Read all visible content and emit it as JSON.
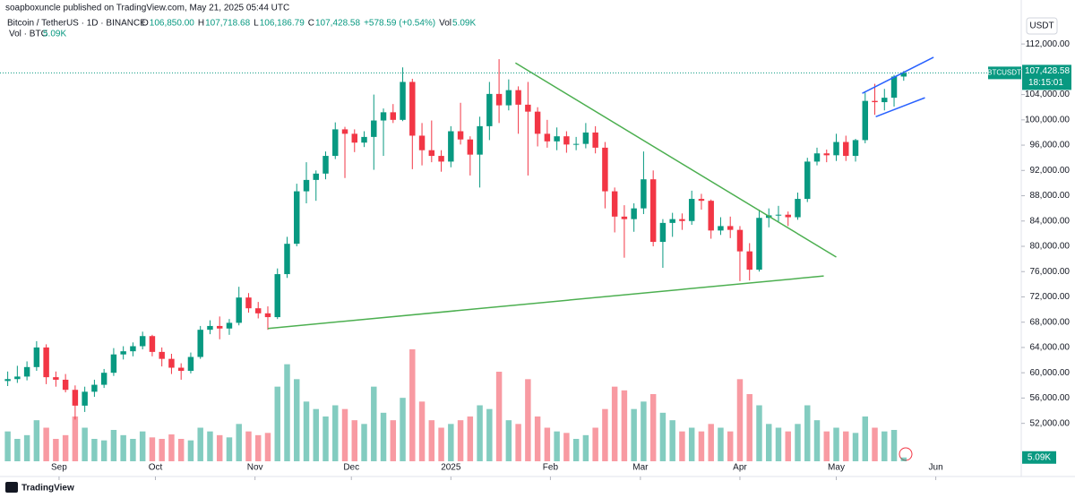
{
  "header": {
    "published": "soapboxuncle published on TradingView.com, May 21, 2025 05:44 UTC",
    "symbol": "Bitcoin / TetherUS · 1D · BINANCE",
    "ohlc": [
      {
        "key": "O",
        "text": "106,850.00"
      },
      {
        "key": "H",
        "text": "107,718.68"
      },
      {
        "key": "L",
        "text": "106,186.79"
      },
      {
        "key": "C",
        "text": "107,428.58"
      }
    ],
    "change": "+578.59 (+0.54%)",
    "vol_key": "Vol",
    "vol_text": "5.09K",
    "vol_legend": "Vol · BTC",
    "vol_legend_value": "5.09K",
    "currency": "USDT",
    "brand": "TradingView"
  },
  "chart_data": {
    "type": "candlestick",
    "symbol_tag": "BTCUSDT",
    "countdown": "18:15:01",
    "up_color": "#089981",
    "down_color": "#f23645",
    "grid": false,
    "xlim": [
      -0.8,
      105.2
    ],
    "ylim": [
      46000,
      114000
    ],
    "vlim": [
      0,
      180
    ],
    "xticks": [
      {
        "value": 5.33,
        "label": "Sep"
      },
      {
        "value": 15.33,
        "label": "Oct"
      },
      {
        "value": 25.67,
        "label": "Nov"
      },
      {
        "value": 35.67,
        "label": "Dec"
      },
      {
        "value": 46,
        "label": "2025"
      },
      {
        "value": 56.33,
        "label": "Feb"
      },
      {
        "value": 65.67,
        "label": "Mar"
      },
      {
        "value": 76,
        "label": "Apr"
      },
      {
        "value": 86,
        "label": "May"
      },
      {
        "value": 96.33,
        "label": "Jun"
      }
    ],
    "yticks": [
      {
        "value": 52000,
        "label": "52,000.00"
      },
      {
        "value": 56000,
        "label": "56,000.00"
      },
      {
        "value": 60000,
        "label": "60,000.00"
      },
      {
        "value": 64000,
        "label": "64,000.00"
      },
      {
        "value": 68000,
        "label": "68,000.00"
      },
      {
        "value": 72000,
        "label": "72,000.00"
      },
      {
        "value": 76000,
        "label": "76,000.00"
      },
      {
        "value": 80000,
        "label": "80,000.00"
      },
      {
        "value": 84000,
        "label": "84,000.00"
      },
      {
        "value": 88000,
        "label": "88,000.00"
      },
      {
        "value": 92000,
        "label": "92,000.00"
      },
      {
        "value": 96000,
        "label": "96,000.00"
      },
      {
        "value": 100000,
        "label": "100,000.00"
      },
      {
        "value": 104000,
        "label": "104,000.00"
      },
      {
        "value": 108000,
        "label": "108,000.00"
      },
      {
        "value": 112000,
        "label": "112,000.00"
      }
    ],
    "last_price": {
      "value": 107428.58,
      "label": "107,428.58"
    },
    "volume_tag": {
      "value": 5.09,
      "label": "5.09K"
    },
    "open": [
      58700,
      59000,
      59400,
      60900,
      64000,
      59300,
      58900,
      57300,
      54800,
      57000,
      58100,
      60000,
      62900,
      63400,
      64200,
      65800,
      63300,
      62200,
      60800,
      60300,
      62500,
      66800,
      67400,
      67000,
      67900,
      71900,
      70200,
      69400,
      68800,
      75600,
      80400,
      88700,
      90500,
      91500,
      94300,
      98500,
      97800,
      96400,
      97300,
      99900,
      101200,
      100000,
      106000,
      97500,
      95200,
      94300,
      93400,
      98200,
      96900,
      94500,
      99000,
      104100,
      102300,
      104700,
      102400,
      101300,
      97800,
      96600,
      97400,
      96100,
      96200,
      98000,
      95600,
      88700,
      84700,
      84300,
      86000,
      90600,
      80700,
      83700,
      84300,
      84000,
      87500,
      87200,
      82500,
      83200,
      82600,
      79200,
      76300,
      84500,
      84900,
      85000,
      84600,
      87500,
      93400,
      94700,
      94400,
      96500,
      94300,
      96800,
      103000,
      102800,
      103500,
      106850
    ],
    "high": [
      60200,
      61100,
      61800,
      65000,
      64500,
      60200,
      59800,
      58000,
      57800,
      58900,
      60600,
      63900,
      64200,
      64800,
      66500,
      66000,
      64000,
      63000,
      61500,
      63200,
      67400,
      68300,
      68900,
      68500,
      73600,
      72600,
      71200,
      70500,
      76500,
      81500,
      89900,
      93300,
      92000,
      95000,
      99600,
      98900,
      98500,
      98200,
      104000,
      101800,
      102500,
      108300,
      106500,
      99500,
      99900,
      95200,
      99000,
      102700,
      97400,
      100500,
      106000,
      109600,
      106400,
      105300,
      106000,
      102000,
      100000,
      98800,
      98200,
      97300,
      99500,
      99000,
      96500,
      89300,
      86500,
      86800,
      95000,
      92000,
      84300,
      85300,
      85200,
      88800,
      88300,
      87400,
      84600,
      84700,
      83200,
      80500,
      85800,
      86000,
      86400,
      85500,
      88500,
      94000,
      95600,
      95300,
      97800,
      97500,
      97000,
      104300,
      105700,
      104900,
      107100,
      107718.68
    ],
    "low": [
      57900,
      58400,
      58800,
      60300,
      58200,
      57800,
      56900,
      52600,
      53800,
      56200,
      57600,
      59500,
      62100,
      62600,
      63700,
      62600,
      61000,
      59800,
      58900,
      59900,
      62200,
      66100,
      65300,
      66000,
      67500,
      69500,
      68600,
      66800,
      68500,
      75000,
      80000,
      86800,
      87200,
      90600,
      93800,
      90800,
      94900,
      95700,
      92100,
      94300,
      99500,
      99800,
      92200,
      92800,
      93300,
      91800,
      92500,
      96100,
      91200,
      89300,
      96800,
      99500,
      101500,
      97800,
      91200,
      95800,
      95600,
      95200,
      94800,
      95200,
      95500,
      94700,
      86000,
      82200,
      78200,
      82300,
      85100,
      80000,
      76600,
      81500,
      82600,
      83400,
      85800,
      81200,
      81800,
      81300,
      74500,
      74600,
      76000,
      83000,
      83800,
      83200,
      84200,
      87000,
      92800,
      93300,
      93500,
      93500,
      93400,
      96300,
      100800,
      101500,
      102100,
      106186.79
    ],
    "close": [
      59000,
      59400,
      60900,
      64000,
      59300,
      58900,
      57300,
      54800,
      57000,
      58100,
      60000,
      62900,
      63400,
      64200,
      65800,
      63300,
      62200,
      60800,
      60300,
      62500,
      66800,
      67400,
      67000,
      67900,
      71900,
      70200,
      69400,
      68800,
      75600,
      80400,
      88700,
      90500,
      91500,
      94300,
      98500,
      97800,
      96400,
      97300,
      99900,
      101200,
      100000,
      106000,
      97500,
      95200,
      94300,
      93400,
      98200,
      96900,
      94500,
      99000,
      104100,
      102300,
      104700,
      102400,
      101300,
      97800,
      96600,
      97400,
      96100,
      96200,
      98000,
      95600,
      88700,
      84700,
      84300,
      86000,
      90600,
      80700,
      83700,
      84300,
      84000,
      87500,
      87200,
      82500,
      83200,
      82600,
      79200,
      76300,
      84500,
      84900,
      85000,
      84600,
      87500,
      93400,
      94700,
      94400,
      96500,
      94300,
      96800,
      103000,
      102800,
      103500,
      106850,
      107428.58
    ],
    "volume": [
      40,
      30,
      35,
      55,
      45,
      30,
      35,
      60,
      45,
      30,
      28,
      42,
      35,
      30,
      40,
      32,
      30,
      36,
      30,
      28,
      45,
      40,
      35,
      32,
      50,
      40,
      35,
      38,
      100,
      130,
      110,
      80,
      70,
      60,
      75,
      70,
      55,
      50,
      100,
      65,
      55,
      85,
      150,
      80,
      55,
      45,
      50,
      55,
      60,
      75,
      70,
      120,
      55,
      50,
      110,
      60,
      45,
      40,
      38,
      30,
      35,
      45,
      70,
      100,
      95,
      70,
      80,
      90,
      65,
      55,
      40,
      45,
      40,
      50,
      45,
      40,
      110,
      90,
      75,
      50,
      45,
      40,
      50,
      75,
      55,
      40,
      45,
      40,
      38,
      60,
      45,
      40,
      42,
      5.09
    ],
    "trendlines": [
      {
        "color": "#4caf50",
        "x": [
          27,
          84.7
        ],
        "y": [
          67000,
          75300
        ]
      },
      {
        "color": "#4caf50",
        "x": [
          52.7,
          86
        ],
        "y": [
          109000,
          78300
        ]
      },
      {
        "color": "#2962ff",
        "x": [
          88.7,
          96.1
        ],
        "y": [
          104200,
          109900
        ]
      },
      {
        "color": "#2962ff",
        "x": [
          90.1,
          95.2
        ],
        "y": [
          100500,
          103500
        ]
      }
    ]
  }
}
